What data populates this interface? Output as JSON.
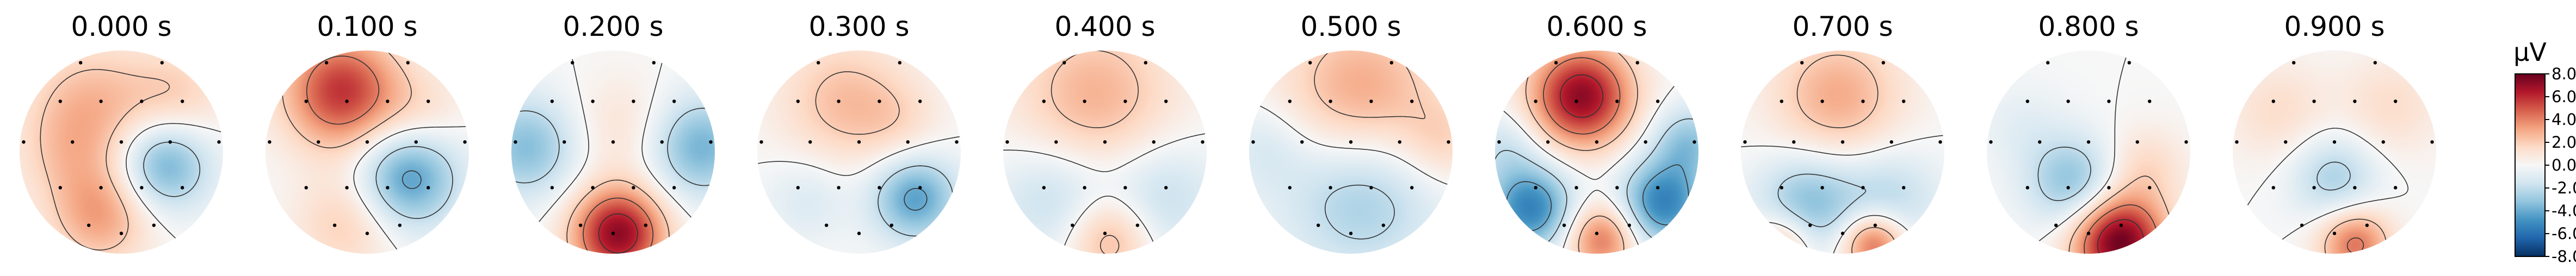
{
  "chart_data": {
    "type": "heatmap",
    "description_kind": "scalp topographic maps",
    "maps": [
      {
        "title": "0.000 s",
        "sources": [
          [
            -0.3,
            0.45,
            2.6,
            0.45
          ],
          [
            -0.2,
            -0.62,
            3.2,
            0.35
          ],
          [
            0.55,
            0.55,
            1.8,
            0.35
          ],
          [
            0.42,
            -0.12,
            -4.2,
            0.32
          ],
          [
            -0.55,
            -0.05,
            1.2,
            0.35
          ]
        ]
      },
      {
        "title": "0.100 s",
        "sources": [
          [
            -0.25,
            0.6,
            5.8,
            0.4
          ],
          [
            0.4,
            -0.25,
            -4.6,
            0.35
          ],
          [
            -0.2,
            -0.7,
            2.0,
            0.35
          ],
          [
            0.55,
            0.4,
            1.2,
            0.3
          ]
        ]
      },
      {
        "title": "0.200 s",
        "sources": [
          [
            0.05,
            -0.8,
            7.2,
            0.32
          ],
          [
            -0.85,
            0.05,
            -3.4,
            0.35
          ],
          [
            0.85,
            0.05,
            -3.8,
            0.35
          ],
          [
            0.1,
            0.25,
            1.2,
            0.35
          ]
        ]
      },
      {
        "title": "0.300 s",
        "sources": [
          [
            -0.15,
            0.5,
            2.4,
            0.45
          ],
          [
            0.55,
            -0.45,
            -4.4,
            0.3
          ],
          [
            -0.5,
            -0.45,
            -1.2,
            0.3
          ],
          [
            0.4,
            0.3,
            1.0,
            0.3
          ]
        ]
      },
      {
        "title": "0.400 s",
        "sources": [
          [
            -0.1,
            0.55,
            2.8,
            0.55
          ],
          [
            -0.5,
            -0.45,
            -2.0,
            0.4
          ],
          [
            0.55,
            -0.45,
            -2.0,
            0.4
          ],
          [
            0.05,
            -0.85,
            3.0,
            0.3
          ]
        ]
      },
      {
        "title": "0.500 s",
        "sources": [
          [
            0.1,
            0.55,
            3.4,
            0.55
          ],
          [
            0.1,
            -0.4,
            -3.0,
            0.55
          ],
          [
            0.9,
            0.1,
            1.6,
            0.3
          ],
          [
            -0.85,
            0.05,
            -1.2,
            0.3
          ]
        ]
      },
      {
        "title": "0.600 s",
        "sources": [
          [
            -0.15,
            0.55,
            7.2,
            0.35
          ],
          [
            -0.65,
            -0.55,
            -5.4,
            0.3
          ],
          [
            0.65,
            -0.5,
            -5.4,
            0.3
          ],
          [
            0.05,
            -0.85,
            4.4,
            0.25
          ],
          [
            0.9,
            0.1,
            -3.0,
            0.25
          ],
          [
            -0.9,
            0.05,
            -1.6,
            0.25
          ]
        ]
      },
      {
        "title": "0.700 s",
        "sources": [
          [
            -0.05,
            0.55,
            3.0,
            0.45
          ],
          [
            -0.35,
            -0.5,
            -3.4,
            0.35
          ],
          [
            0.45,
            -0.45,
            -2.2,
            0.35
          ],
          [
            0.3,
            -0.9,
            5.0,
            0.22
          ],
          [
            -0.6,
            -0.9,
            3.0,
            0.22
          ]
        ]
      },
      {
        "title": "0.800 s",
        "sources": [
          [
            0.3,
            -0.88,
            8.0,
            0.32
          ],
          [
            -0.15,
            -0.3,
            -3.4,
            0.32
          ],
          [
            0.55,
            -0.15,
            1.6,
            0.28
          ],
          [
            -0.65,
            0.25,
            -0.8,
            0.3
          ]
        ]
      },
      {
        "title": "0.900 s",
        "sources": [
          [
            0.0,
            -0.25,
            -2.6,
            0.3
          ],
          [
            0.2,
            -0.9,
            4.4,
            0.25
          ],
          [
            -0.55,
            0.4,
            1.4,
            0.35
          ],
          [
            0.55,
            0.45,
            1.4,
            0.35
          ]
        ]
      }
    ],
    "sensor_positions": [
      [
        -0.4,
        0.88
      ],
      [
        0.4,
        0.88
      ],
      [
        -0.6,
        0.5
      ],
      [
        -0.2,
        0.5
      ],
      [
        0.2,
        0.5
      ],
      [
        0.6,
        0.5
      ],
      [
        -0.96,
        0.1
      ],
      [
        -0.48,
        0.1
      ],
      [
        0.0,
        0.1
      ],
      [
        0.48,
        0.1
      ],
      [
        0.96,
        0.1
      ],
      [
        -0.6,
        -0.35
      ],
      [
        -0.2,
        -0.35
      ],
      [
        0.2,
        -0.35
      ],
      [
        0.6,
        -0.35
      ],
      [
        -0.32,
        -0.72
      ],
      [
        0.0,
        -0.8
      ],
      [
        0.32,
        -0.72
      ]
    ],
    "contour_levels": [
      -6,
      -4,
      -2,
      0,
      2,
      4,
      6
    ],
    "colorbar": {
      "unit": "µV",
      "range": [
        -8.0,
        8.0
      ],
      "ticks": [
        "8.0",
        "6.0",
        "4.0",
        "2.0",
        "0.0",
        "-2.0",
        "-4.0",
        "-6.0",
        "-8.0"
      ],
      "colormap": [
        "#053061",
        "#2166ac",
        "#4393c3",
        "#92c5de",
        "#d1e5f0",
        "#f7f7f7",
        "#fddbc7",
        "#f4a582",
        "#d6604d",
        "#b2182b",
        "#67001f"
      ]
    }
  }
}
